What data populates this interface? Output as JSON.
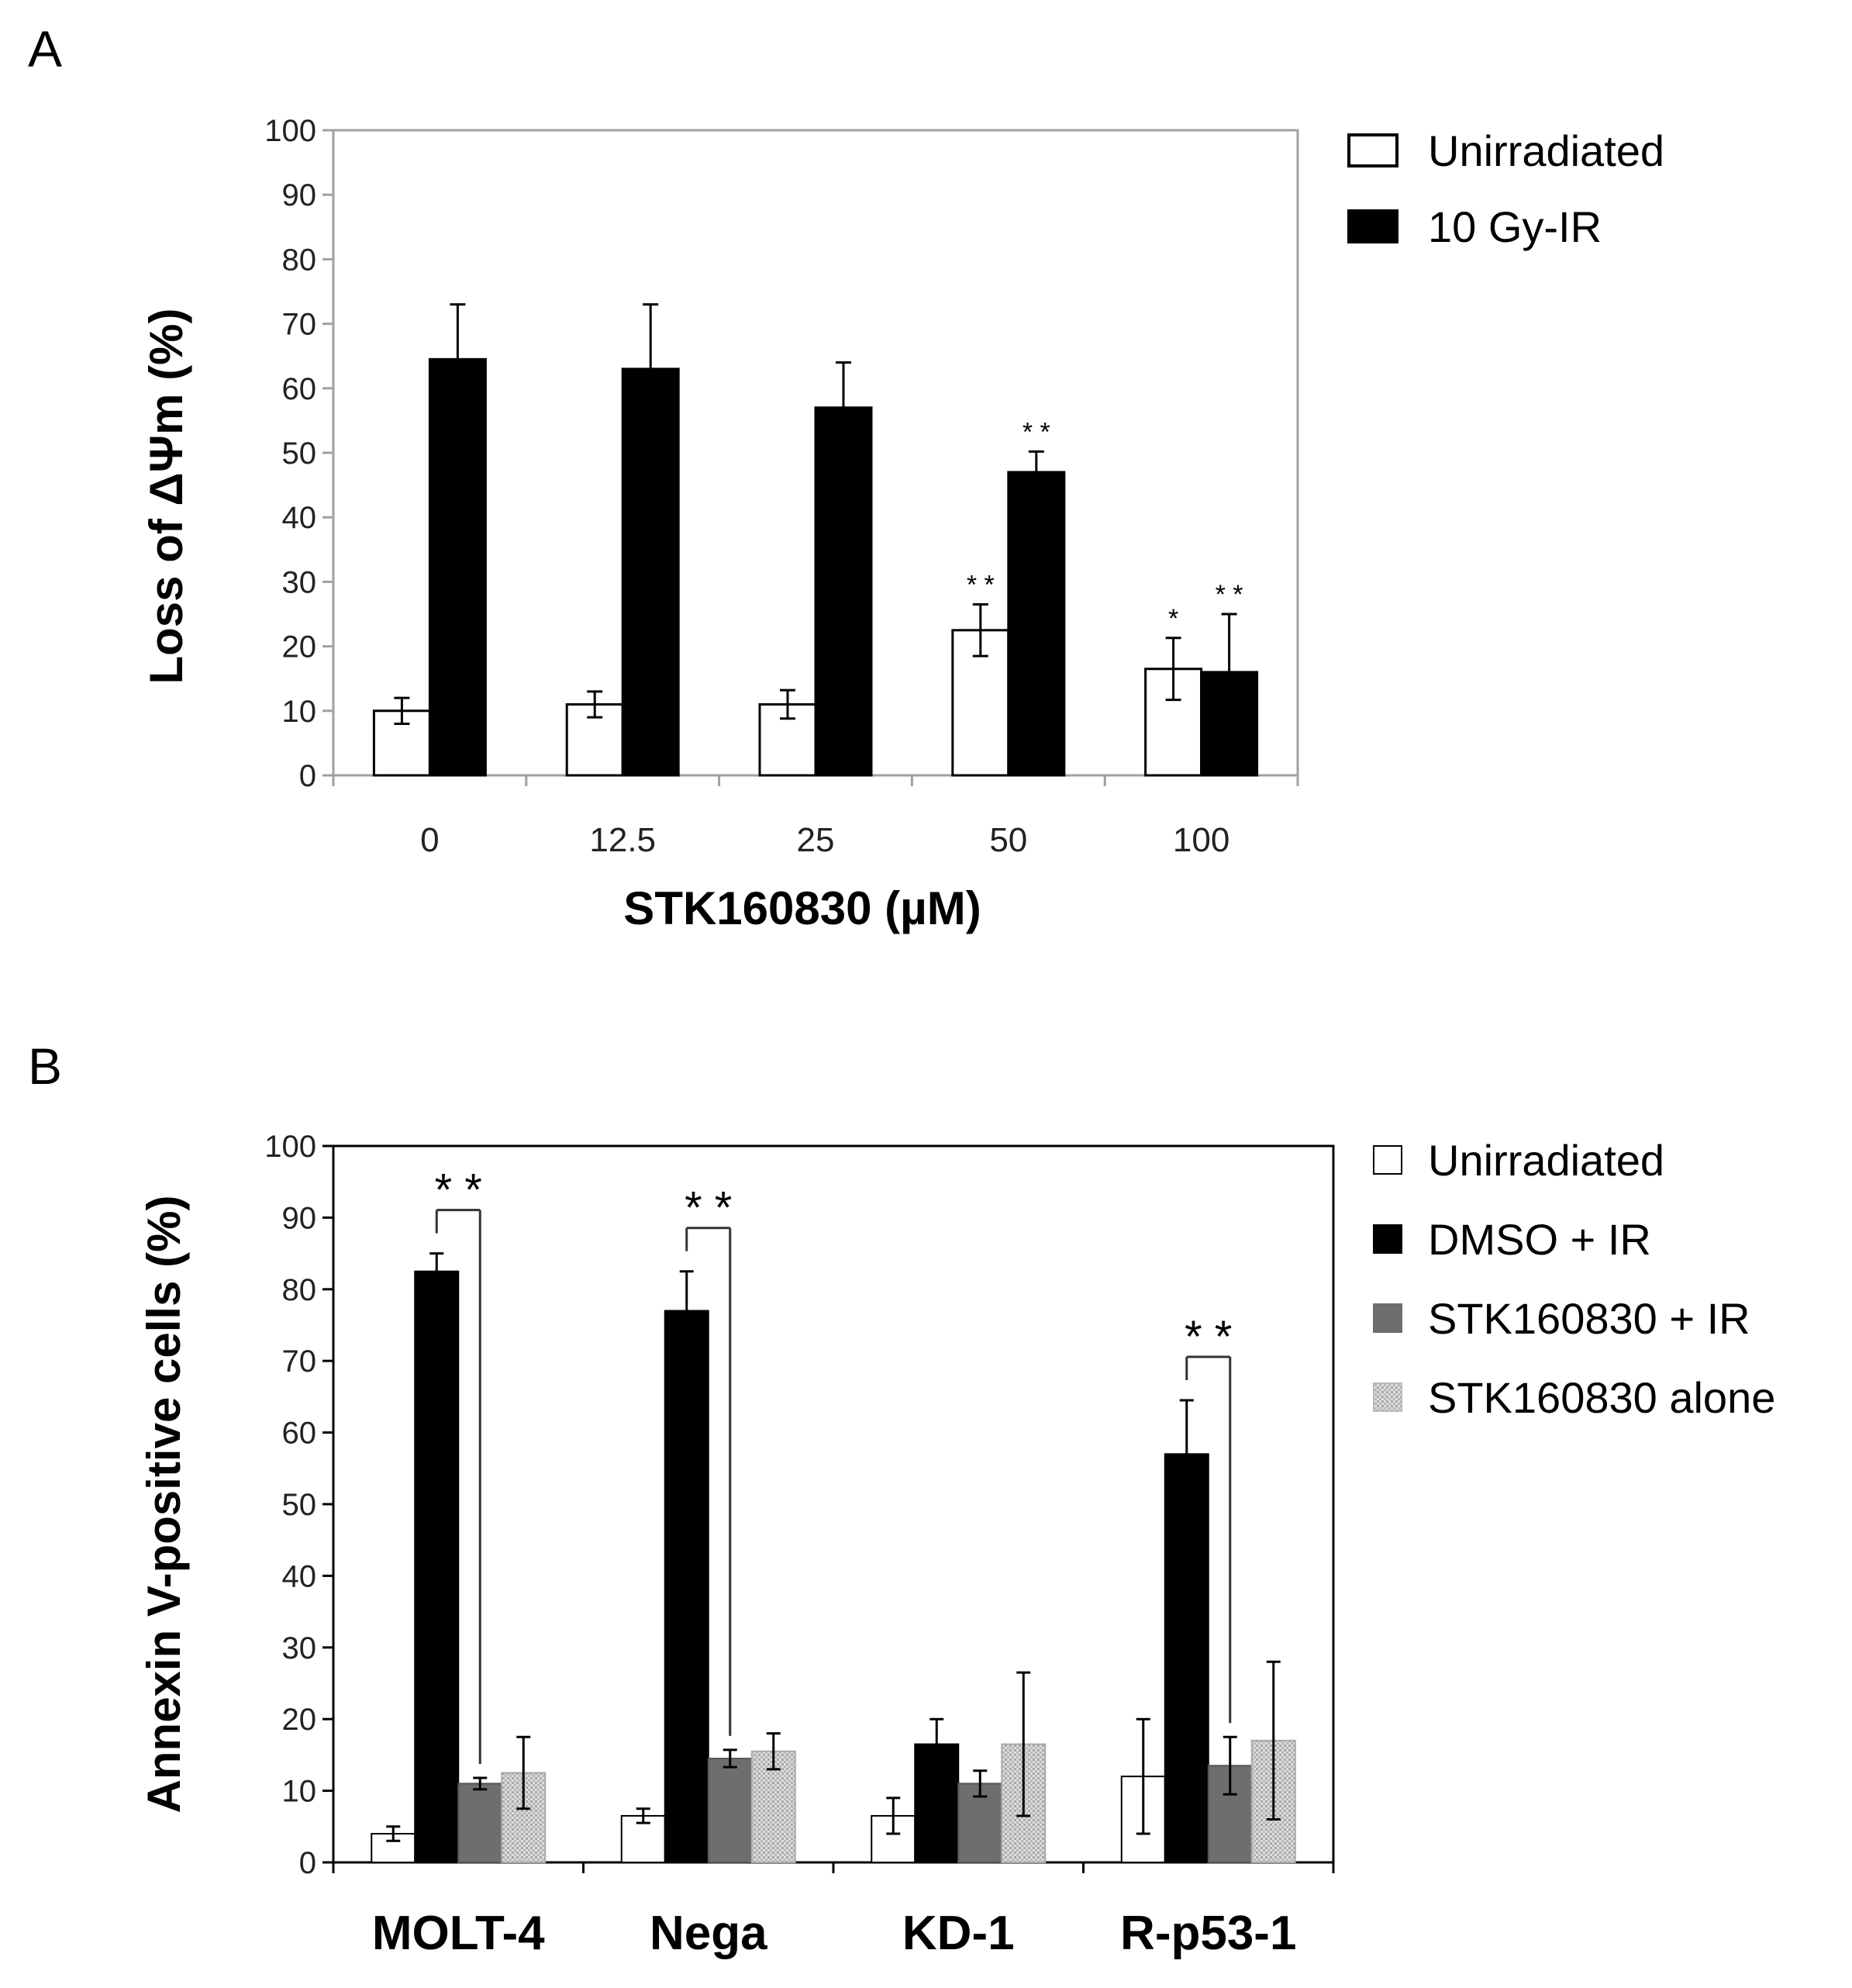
{
  "panels": {
    "a_letter": "A",
    "b_letter": "B"
  },
  "chart_data": [
    {
      "id": "panel-a",
      "type": "bar",
      "title": "",
      "xlabel": "STK160830  (µM)",
      "ylabel": "Loss of ΔΨm (%)",
      "ylim": [
        0,
        100
      ],
      "yticks": [
        0,
        10,
        20,
        30,
        40,
        50,
        60,
        70,
        80,
        90,
        100
      ],
      "categories": [
        "0",
        "12.5",
        "25",
        "50",
        "100"
      ],
      "legend_position": "top-right outside",
      "series": [
        {
          "name": "Unirradiated",
          "color": "#ffffff",
          "values": [
            10,
            11,
            11,
            22.5,
            16.5
          ],
          "errors": [
            2,
            2,
            2.2,
            4,
            4.8
          ]
        },
        {
          "name": "10 Gy-IR",
          "color": "#000000",
          "values": [
            64.5,
            63,
            57,
            47,
            16
          ],
          "errors": [
            8.5,
            10,
            7,
            3.2,
            9
          ]
        }
      ],
      "significance": [
        {
          "category": "50",
          "series": "Unirradiated",
          "label": "* *"
        },
        {
          "category": "50",
          "series": "10 Gy-IR",
          "label": "* *"
        },
        {
          "category": "100",
          "series": "Unirradiated",
          "label": "*"
        },
        {
          "category": "100",
          "series": "10 Gy-IR",
          "label": "* *"
        }
      ]
    },
    {
      "id": "panel-b",
      "type": "bar",
      "title": "",
      "xlabel": "",
      "ylabel": "Annexin V-positive cells (%)",
      "ylim": [
        0,
        100
      ],
      "yticks": [
        0,
        10,
        20,
        30,
        40,
        50,
        60,
        70,
        80,
        90,
        100
      ],
      "categories": [
        "MOLT-4",
        "Nega",
        "KD-1",
        "R-p53-1"
      ],
      "legend_position": "top-right outside",
      "series": [
        {
          "name": "Unirradiated",
          "color": "#ffffff",
          "values": [
            4,
            6.5,
            6.5,
            12
          ],
          "errors": [
            1,
            1,
            2.5,
            8
          ]
        },
        {
          "name": "DMSO + IR",
          "color": "#000000",
          "values": [
            82.5,
            77,
            16.5,
            57
          ],
          "errors": [
            2.5,
            5.5,
            3.5,
            7.5
          ]
        },
        {
          "name": "STK160830 + IR",
          "color": "#6e6e6e",
          "values": [
            11,
            14.5,
            11,
            13.5
          ],
          "errors": [
            0.8,
            1.2,
            1.8,
            4
          ]
        },
        {
          "name": "STK160830 alone",
          "color": "#d2d2d2",
          "values": [
            12.5,
            15.5,
            16.5,
            17
          ],
          "errors": [
            5,
            2.5,
            10,
            11
          ]
        }
      ],
      "significance": [
        {
          "category": "MOLT-4",
          "label": "* *"
        },
        {
          "category": "Nega",
          "label": "* *"
        },
        {
          "category": "R-p53-1",
          "label": "* *"
        }
      ]
    }
  ]
}
